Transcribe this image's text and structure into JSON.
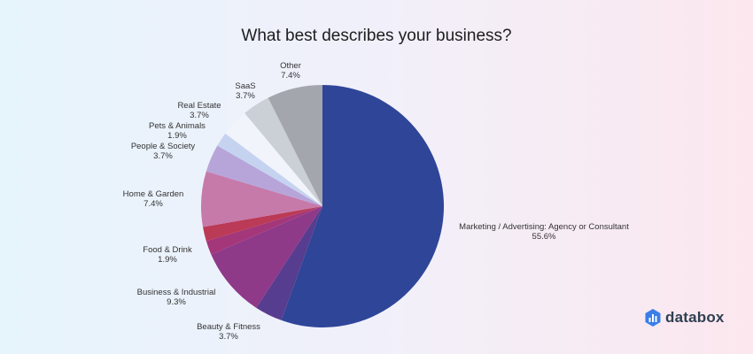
{
  "chart_data": {
    "type": "pie",
    "title": "What best describes your business?",
    "slices": [
      {
        "label": "Marketing / Advertising: Agency or Consultant",
        "percent_label": "55.6%",
        "value": 55.6,
        "color": "#2e4598",
        "show_label": true
      },
      {
        "label": "Beauty & Fitness",
        "percent_label": "3.7%",
        "value": 3.7,
        "color": "#573d8f",
        "show_label": true
      },
      {
        "label": "Business & Industrial",
        "percent_label": "9.3%",
        "value": 9.3,
        "color": "#8f3989",
        "show_label": true
      },
      {
        "label": "",
        "percent_label": "",
        "value": 1.9,
        "color": "#a4377a",
        "show_label": false
      },
      {
        "label": "Food & Drink",
        "percent_label": "1.9%",
        "value": 1.9,
        "color": "#bb3a55",
        "show_label": true
      },
      {
        "label": "Home & Garden",
        "percent_label": "7.4%",
        "value": 7.4,
        "color": "#c67aaa",
        "show_label": true
      },
      {
        "label": "People & Society",
        "percent_label": "3.7%",
        "value": 3.7,
        "color": "#b7a5da",
        "show_label": true
      },
      {
        "label": "Pets & Animals",
        "percent_label": "1.9%",
        "value": 1.9,
        "color": "#c6d3f0",
        "show_label": true
      },
      {
        "label": "Real Estate",
        "percent_label": "3.7%",
        "value": 3.7,
        "color": "#f1f5fb",
        "show_label": true
      },
      {
        "label": "SaaS",
        "percent_label": "3.7%",
        "value": 3.7,
        "color": "#cbcfd6",
        "show_label": true
      },
      {
        "label": "Other",
        "percent_label": "7.4%",
        "value": 7.4,
        "color": "#a4a6ae",
        "show_label": true
      }
    ]
  },
  "brand": {
    "name": "databox",
    "icon_color": "#3a7ee8"
  }
}
